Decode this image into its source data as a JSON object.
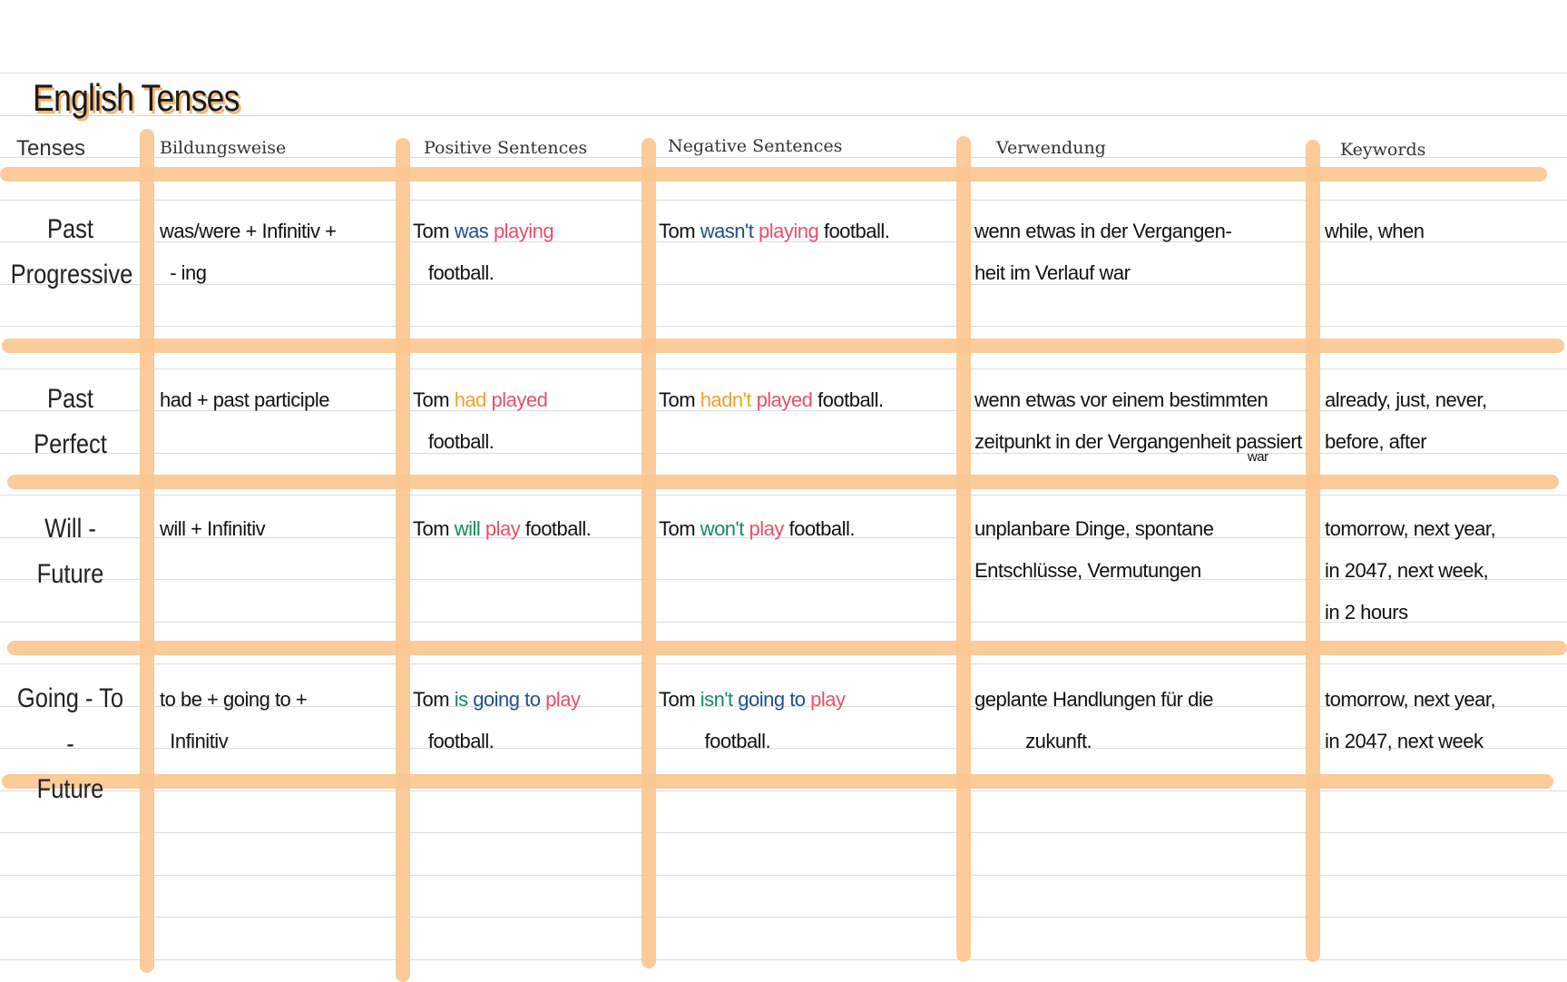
{
  "title": "English Tenses",
  "headers": [
    "Tenses",
    "Bildungsweise",
    "Positive Sentences",
    "Negative Sentences",
    "Verwendung",
    "Keywords"
  ],
  "colors": {
    "grid": "#fbc58f",
    "blue": "#1f4e8c",
    "red": "#e8506a",
    "orange": "#eda12f",
    "green": "#178a5c"
  },
  "rows": [
    {
      "tense": [
        "Past",
        "Progressive"
      ],
      "bildung": [
        [
          [
            "black",
            "was/were + Infinitiv +"
          ]
        ],
        [
          [
            "black",
            "  - ing"
          ]
        ]
      ],
      "positive": [
        [
          [
            "black",
            "Tom "
          ],
          [
            "blue",
            "was "
          ],
          [
            "red",
            "playing"
          ]
        ],
        [
          [
            "black",
            "   football."
          ]
        ]
      ],
      "negative": [
        [
          [
            "black",
            "Tom "
          ],
          [
            "blue",
            "wasn't "
          ],
          [
            "red",
            "playing "
          ],
          [
            "black",
            "football."
          ]
        ]
      ],
      "verwendung": [
        [
          [
            "black",
            "wenn etwas in der Vergangen-"
          ]
        ],
        [
          [
            "black",
            "heit im Verlauf war"
          ]
        ]
      ],
      "keywords": [
        [
          [
            "black",
            "while, when"
          ]
        ]
      ]
    },
    {
      "tense": [
        "Past",
        "Perfect"
      ],
      "bildung": [
        [
          [
            "black",
            "had + past participle"
          ]
        ]
      ],
      "positive": [
        [
          [
            "black",
            "Tom "
          ],
          [
            "orange",
            "had "
          ],
          [
            "red",
            "played"
          ]
        ],
        [
          [
            "black",
            "   football."
          ]
        ]
      ],
      "negative": [
        [
          [
            "black",
            "Tom "
          ],
          [
            "orange",
            "hadn't "
          ],
          [
            "red",
            "played "
          ],
          [
            "black",
            "football."
          ]
        ]
      ],
      "verwendung": [
        [
          [
            "black",
            "wenn etwas vor einem bestimmten"
          ]
        ],
        [
          [
            "black",
            "zeitpunkt in der Vergangenheit passiert"
          ],
          [
            "small",
            "war"
          ]
        ]
      ],
      "keywords": [
        [
          [
            "black",
            "already, just, never,"
          ]
        ],
        [
          [
            "black",
            "before, after"
          ]
        ]
      ]
    },
    {
      "tense": [
        "Will -",
        "Future"
      ],
      "bildung": [
        [
          [
            "black",
            "will + Infinitiv"
          ]
        ]
      ],
      "positive": [
        [
          [
            "black",
            "Tom "
          ],
          [
            "green",
            "will "
          ],
          [
            "red",
            "play "
          ],
          [
            "black",
            "football."
          ]
        ]
      ],
      "negative": [
        [
          [
            "black",
            "Tom "
          ],
          [
            "green",
            "won't "
          ],
          [
            "red",
            "play "
          ],
          [
            "black",
            "football."
          ]
        ]
      ],
      "verwendung": [
        [
          [
            "black",
            "unplanbare Dinge, spontane"
          ]
        ],
        [
          [
            "black",
            "Entschlüsse, Vermutungen"
          ]
        ]
      ],
      "keywords": [
        [
          [
            "black",
            "tomorrow, next year,"
          ]
        ],
        [
          [
            "black",
            "in 2047, next week,"
          ]
        ],
        [
          [
            "black",
            "in 2 hours"
          ]
        ]
      ]
    },
    {
      "tense": [
        "Going - To -",
        "Future"
      ],
      "bildung": [
        [
          [
            "black",
            "to be + going to +"
          ]
        ],
        [
          [
            "black",
            "  Infinitiv"
          ]
        ]
      ],
      "positive": [
        [
          [
            "black",
            "Tom "
          ],
          [
            "green",
            "is "
          ],
          [
            "blue",
            "going to "
          ],
          [
            "red",
            "play"
          ]
        ],
        [
          [
            "black",
            "   football."
          ]
        ]
      ],
      "negative": [
        [
          [
            "black",
            "Tom "
          ],
          [
            "green",
            "isn't "
          ],
          [
            "blue",
            "going to "
          ],
          [
            "red",
            "play"
          ]
        ],
        [
          [
            "black",
            "         football."
          ]
        ]
      ],
      "verwendung": [
        [
          [
            "black",
            "geplante Handlungen für die"
          ]
        ],
        [
          [
            "black",
            "          zukunft."
          ]
        ]
      ],
      "keywords": [
        [
          [
            "black",
            "tomorrow, next year,"
          ]
        ],
        [
          [
            "black",
            "in 2047, next week"
          ]
        ]
      ]
    }
  ]
}
